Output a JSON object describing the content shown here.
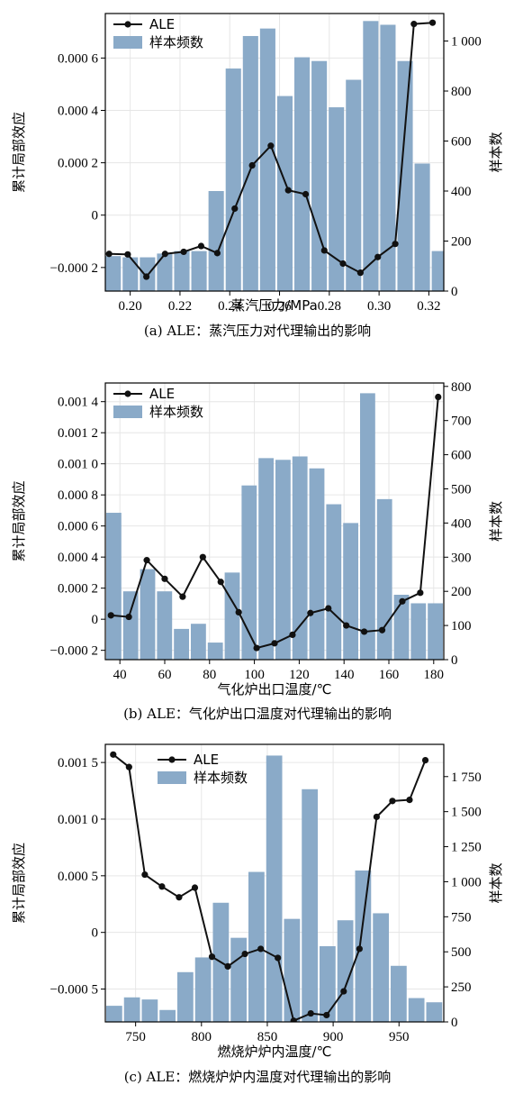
{
  "colors": {
    "bar": "#8aaac8",
    "line": "#111111",
    "grid": "#e6e6e6",
    "frame": "#000000"
  },
  "chart_data": [
    {
      "type": "bar+line",
      "xlabel": "蒸汽压力/MPa",
      "ylabel_left": "累计局部效应",
      "ylabel_right": "样本数",
      "caption": "(a) ALE：蒸汽压力对代理输出的影响",
      "legend": {
        "placement": "top-left",
        "line_label": "ALE",
        "bar_label": "样本频数"
      },
      "xlim": [
        0.19,
        0.326
      ],
      "ylim_left": [
        -0.00029,
        0.00077
      ],
      "ylim_right": [
        0,
        1110
      ],
      "x_ticks": [
        0.2,
        0.22,
        0.24,
        0.26,
        0.28,
        0.3,
        0.32
      ],
      "x_tick_labels": [
        "0.20",
        "0.22",
        "0.24",
        "0.26",
        "0.28",
        "0.30",
        "0.32"
      ],
      "left_ticks": [
        -0.0002,
        0,
        0.0002,
        0.0004,
        0.0006
      ],
      "left_tick_labels": [
        "−0.000 2",
        "0",
        "0.000 2",
        "0.000 4",
        "0.000 6"
      ],
      "right_ticks": [
        0,
        200,
        400,
        600,
        800,
        1000
      ],
      "right_tick_labels": [
        "0",
        "200",
        "400",
        "600",
        "800",
        "1 000"
      ],
      "bar_edges": [
        0.1897,
        0.1966,
        0.2035,
        0.2104,
        0.2173,
        0.2242,
        0.2311,
        0.238,
        0.2449,
        0.2518,
        0.2587,
        0.2656,
        0.2725,
        0.2794,
        0.2863,
        0.2932,
        0.3001,
        0.307,
        0.3139,
        0.3208,
        0.3277
      ],
      "bar_counts": [
        140,
        135,
        135,
        150,
        160,
        160,
        400,
        890,
        1020,
        1050,
        780,
        935,
        920,
        735,
        845,
        1080,
        1065,
        920,
        510,
        160
      ],
      "ale_x": [
        0.1915,
        0.199,
        0.2065,
        0.214,
        0.2215,
        0.2285,
        0.235,
        0.242,
        0.249,
        0.2565,
        0.2635,
        0.2705,
        0.278,
        0.2855,
        0.2925,
        0.2995,
        0.3065,
        0.314,
        0.3215
      ],
      "ale_y": [
        -0.000148,
        -0.00015,
        -0.000235,
        -0.000148,
        -0.00014,
        -0.000118,
        -0.000145,
        2.5e-05,
        0.00019,
        0.000265,
        9.5e-05,
        8e-05,
        -0.000135,
        -0.000185,
        -0.00022,
        -0.00016,
        -0.00011,
        0.00073,
        0.000735
      ]
    },
    {
      "type": "bar+line",
      "xlabel": "气化炉出口温度/℃",
      "ylabel_left": "累计局部效应",
      "ylabel_right": "样本数",
      "caption": "(b) ALE：气化炉出口温度对代理输出的影响",
      "legend": {
        "placement": "top-left",
        "line_label": "ALE",
        "bar_label": "样本频数"
      },
      "xlim": [
        33.5,
        184.5
      ],
      "ylim_left": [
        -0.00026,
        0.00152
      ],
      "ylim_right": [
        0,
        810
      ],
      "x_ticks": [
        40,
        60,
        80,
        100,
        120,
        140,
        160,
        180
      ],
      "x_tick_labels": [
        "40",
        "60",
        "80",
        "100",
        "120",
        "140",
        "160",
        "180"
      ],
      "left_ticks": [
        -0.0002,
        0,
        0.0002,
        0.0004,
        0.0006,
        0.0008,
        0.001,
        0.0012,
        0.0014
      ],
      "left_tick_labels": [
        "−0.000 2",
        "0",
        "0.000 2",
        "0.000 4",
        "0.000 6",
        "0.000 8",
        "0.001 0",
        "0.001 2",
        "0.001 4"
      ],
      "right_ticks": [
        0,
        100,
        200,
        300,
        400,
        500,
        600,
        700,
        800
      ],
      "right_tick_labels": [
        "0",
        "100",
        "200",
        "300",
        "400",
        "500",
        "600",
        "700",
        "800"
      ],
      "bar_edges": [
        33.5,
        41.05,
        48.6,
        56.15,
        63.7,
        71.25,
        78.8,
        86.35,
        93.9,
        101.45,
        109.0,
        116.55,
        124.1,
        131.65,
        139.2,
        146.75,
        154.3,
        161.85,
        169.4,
        176.95,
        184.5
      ],
      "bar_counts": [
        430,
        200,
        265,
        200,
        90,
        105,
        50,
        255,
        510,
        590,
        585,
        595,
        560,
        455,
        400,
        780,
        470,
        190,
        165,
        165
      ],
      "ale_x": [
        36,
        44,
        52,
        60,
        68,
        77,
        85,
        93,
        101,
        109,
        117,
        125,
        133,
        141,
        149,
        157,
        166,
        174,
        182
      ],
      "ale_y": [
        2.5e-05,
        1.5e-05,
        0.00038,
        0.00026,
        0.000145,
        0.0004,
        0.00024,
        4.5e-05,
        -0.000185,
        -0.000155,
        -0.0001,
        4e-05,
        7e-05,
        -4e-05,
        -8e-05,
        -7e-05,
        0.000115,
        0.00017,
        0.00143
      ]
    },
    {
      "type": "bar+line",
      "xlabel": "燃烧炉炉内温度/℃",
      "ylabel_left": "累计局部效应",
      "ylabel_right": "样本数",
      "caption": "(c) ALE：燃烧炉炉内温度对代理输出的影响",
      "legend": {
        "placement": "top-center",
        "line_label": "ALE",
        "bar_label": "样本频数"
      },
      "xlim": [
        727,
        984
      ],
      "ylim_left": [
        -0.00079,
        0.00166
      ],
      "ylim_right": [
        0,
        1980
      ],
      "x_ticks": [
        750,
        800,
        850,
        900,
        950
      ],
      "x_tick_labels": [
        "750",
        "800",
        "850",
        "900",
        "950"
      ],
      "left_ticks": [
        -0.0005,
        0,
        0.0005,
        0.001,
        0.0015
      ],
      "left_tick_labels": [
        "−0.000 5",
        "0",
        "0.000 5",
        "0.001 0",
        "0.001 5"
      ],
      "right_ticks": [
        0,
        250,
        500,
        750,
        1000,
        1250,
        1500,
        1750
      ],
      "right_tick_labels": [
        "0",
        "250",
        "500",
        "750",
        "1 000",
        "1 250",
        "1 500",
        "1 750"
      ],
      "bar_edges": [
        727,
        740.5,
        754,
        767.5,
        781,
        794.5,
        808,
        821.5,
        835,
        848.5,
        862,
        875.5,
        889,
        902.5,
        916,
        929.5,
        943,
        956.5,
        970,
        983.5
      ],
      "bar_counts": [
        115,
        175,
        160,
        85,
        355,
        460,
        850,
        600,
        1070,
        1900,
        735,
        1660,
        540,
        725,
        1080,
        775,
        400,
        170,
        140
      ],
      "ale_x": [
        733,
        745,
        757,
        770,
        783,
        795,
        808,
        820,
        833,
        845,
        858,
        870,
        883,
        895,
        908,
        920,
        933,
        945,
        958,
        970
      ],
      "ale_y": [
        0.00157,
        0.00146,
        0.00051,
        0.000405,
        0.00031,
        0.000395,
        -0.000215,
        -0.0003,
        -0.00019,
        -0.000145,
        -0.000225,
        -0.00078,
        -0.000715,
        -0.00073,
        -0.00052,
        -0.000145,
        0.00102,
        0.00116,
        0.00117,
        0.00152
      ]
    }
  ]
}
